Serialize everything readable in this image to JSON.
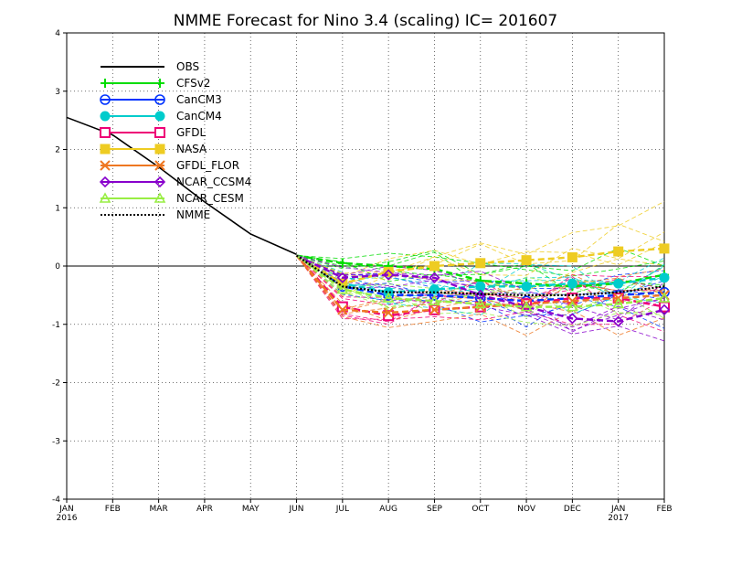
{
  "chart_data": {
    "type": "line",
    "title": "NMME Forecast for Nino 3.4 (scaling) IC= 201607",
    "x": [
      "JAN",
      "FEB",
      "MAR",
      "APR",
      "MAY",
      "JUN",
      "JUL",
      "AUG",
      "SEP",
      "OCT",
      "NOV",
      "DEC",
      "JAN",
      "FEB"
    ],
    "x_years": [
      {
        "index": 0,
        "label": "2016"
      },
      {
        "index": 12,
        "label": "2017"
      }
    ],
    "ylim": [
      -4,
      4
    ],
    "yticks": [
      "4",
      "3",
      "2",
      "1",
      "0",
      "-1",
      "-2",
      "-3",
      "-4"
    ],
    "grid": true,
    "legend_position": "top-left",
    "series": [
      {
        "name": "OBS",
        "color": "#000000",
        "style": "solid",
        "marker": "none",
        "values": [
          2.55,
          2.25,
          1.7,
          1.1,
          0.55,
          0.2,
          null,
          null,
          null,
          null,
          null,
          null,
          null,
          null
        ]
      },
      {
        "name": "CFSv2",
        "color": "#00dd00",
        "style": "dashed",
        "marker": "plus",
        "values": [
          null,
          null,
          null,
          null,
          null,
          0.18,
          0.05,
          0.0,
          -0.05,
          -0.25,
          -0.3,
          -0.35,
          -0.3,
          -0.15
        ]
      },
      {
        "name": "CanCM3",
        "color": "#0033ff",
        "style": "dashed",
        "marker": "circle",
        "values": [
          null,
          null,
          null,
          null,
          null,
          0.18,
          -0.35,
          -0.5,
          -0.5,
          -0.55,
          -0.6,
          -0.55,
          -0.5,
          -0.45
        ]
      },
      {
        "name": "CanCM4",
        "color": "#00cccc",
        "style": "dashed",
        "marker": "dot",
        "values": [
          null,
          null,
          null,
          null,
          null,
          0.18,
          -0.3,
          -0.45,
          -0.4,
          -0.35,
          -0.35,
          -0.3,
          -0.3,
          -0.2
        ]
      },
      {
        "name": "GFDL",
        "color": "#ee0077",
        "style": "dashed",
        "marker": "square",
        "values": [
          null,
          null,
          null,
          null,
          null,
          0.18,
          -0.7,
          -0.85,
          -0.75,
          -0.7,
          -0.65,
          -0.55,
          -0.55,
          -0.7
        ]
      },
      {
        "name": "NASA",
        "color": "#eecc22",
        "style": "dashed",
        "marker": "filled-square",
        "values": [
          null,
          null,
          null,
          null,
          null,
          0.18,
          -0.3,
          -0.1,
          0.0,
          0.05,
          0.1,
          0.15,
          0.25,
          0.3
        ]
      },
      {
        "name": "GFDL_FLOR",
        "color": "#ee7722",
        "style": "dashed",
        "marker": "cross",
        "values": [
          null,
          null,
          null,
          null,
          null,
          0.18,
          -0.75,
          -0.8,
          -0.75,
          -0.7,
          -0.65,
          -0.6,
          -0.55,
          -0.5
        ]
      },
      {
        "name": "NCAR_CCSM4",
        "color": "#8800cc",
        "style": "dashed",
        "marker": "diamond",
        "values": [
          null,
          null,
          null,
          null,
          null,
          0.18,
          -0.2,
          -0.15,
          -0.2,
          -0.5,
          -0.7,
          -0.9,
          -0.95,
          -0.75
        ]
      },
      {
        "name": "NCAR_CESM",
        "color": "#99ee44",
        "style": "dashed",
        "marker": "triangle",
        "values": [
          null,
          null,
          null,
          null,
          null,
          0.18,
          -0.4,
          -0.55,
          -0.6,
          -0.65,
          -0.7,
          -0.7,
          -0.65,
          -0.55
        ]
      },
      {
        "name": "NMME",
        "color": "#000000",
        "style": "dotted",
        "marker": "none",
        "values": [
          null,
          null,
          null,
          null,
          null,
          0.18,
          -0.35,
          -0.45,
          -0.45,
          -0.48,
          -0.5,
          -0.5,
          -0.45,
          -0.35
        ]
      }
    ]
  }
}
